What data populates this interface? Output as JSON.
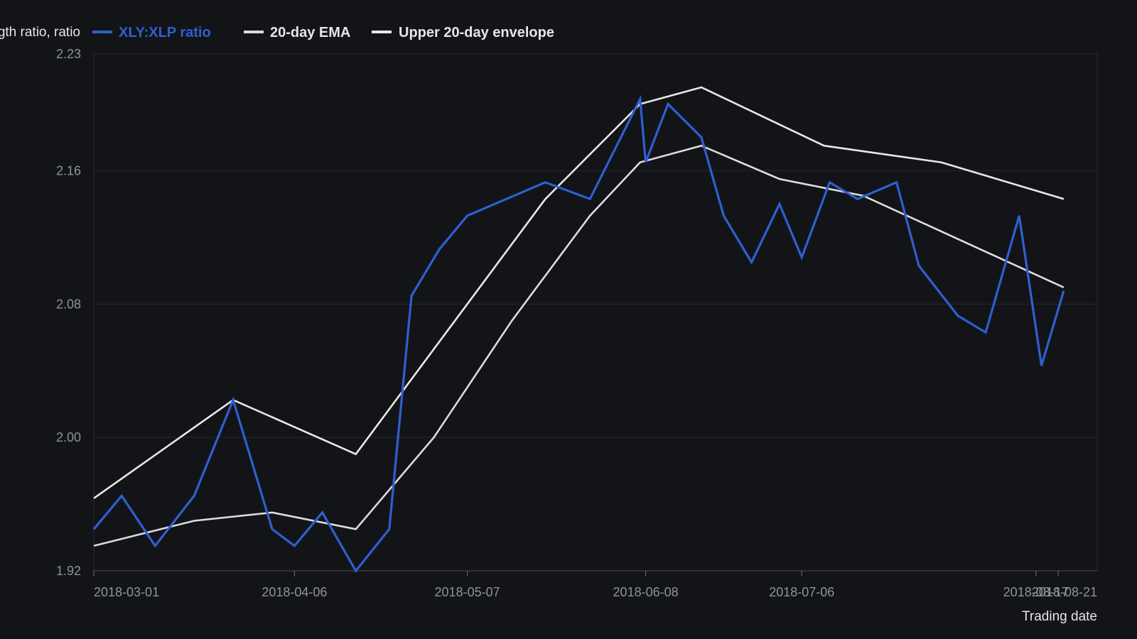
{
  "chart_data": {
    "type": "line",
    "xlabel": "Trading date",
    "ylabel_fragment": "gth ratio, ratio",
    "ylim": [
      1.92,
      2.23
    ],
    "xlim": [
      "2018-03-01",
      "2018-08-28"
    ],
    "y_ticks": [
      "2.23",
      "2.16",
      "2.08",
      "2.00",
      "1.92"
    ],
    "x_ticks": [
      "2018-03-01",
      "2018-04-06",
      "2018-05-07",
      "2018-06-08",
      "2018-07-06",
      "2018-08-17",
      "2018-08-21"
    ],
    "grid": true,
    "legend_position": "top-left",
    "series": [
      {
        "name": "XLY:XLP ratio",
        "color": "#2f5fd0",
        "points": [
          [
            "2018-03-01",
            1.945
          ],
          [
            "2018-03-06",
            1.965
          ],
          [
            "2018-03-12",
            1.935
          ],
          [
            "2018-03-19",
            1.965
          ],
          [
            "2018-03-26",
            2.0225
          ],
          [
            "2018-04-02",
            1.945
          ],
          [
            "2018-04-06",
            1.935
          ],
          [
            "2018-04-11",
            1.955
          ],
          [
            "2018-04-17",
            1.92
          ],
          [
            "2018-04-23",
            1.945
          ],
          [
            "2018-04-27",
            2.085
          ],
          [
            "2018-05-02",
            2.113
          ],
          [
            "2018-05-07",
            2.133
          ],
          [
            "2018-05-21",
            2.153
          ],
          [
            "2018-05-29",
            2.143
          ],
          [
            "2018-06-07",
            2.203
          ],
          [
            "2018-06-08",
            2.165
          ],
          [
            "2018-06-12",
            2.2
          ],
          [
            "2018-06-18",
            2.18
          ],
          [
            "2018-06-22",
            2.133
          ],
          [
            "2018-06-27",
            2.105
          ],
          [
            "2018-07-02",
            2.14
          ],
          [
            "2018-07-06",
            2.108
          ],
          [
            "2018-07-11",
            2.153
          ],
          [
            "2018-07-16",
            2.143
          ],
          [
            "2018-07-23",
            2.153
          ],
          [
            "2018-07-27",
            2.103
          ],
          [
            "2018-08-03",
            2.073
          ],
          [
            "2018-08-08",
            2.063
          ],
          [
            "2018-08-14",
            2.133
          ],
          [
            "2018-08-18",
            2.043
          ],
          [
            "2018-08-22",
            2.088
          ]
        ]
      },
      {
        "name": "20-day EMA",
        "color": "#dcdcdc",
        "points": [
          [
            "2018-03-01",
            1.935
          ],
          [
            "2018-03-19",
            1.95
          ],
          [
            "2018-04-02",
            1.955
          ],
          [
            "2018-04-17",
            1.945
          ],
          [
            "2018-05-01",
            2.0
          ],
          [
            "2018-05-15",
            2.07
          ],
          [
            "2018-05-29",
            2.133
          ],
          [
            "2018-06-07",
            2.165
          ],
          [
            "2018-06-18",
            2.175
          ],
          [
            "2018-07-02",
            2.155
          ],
          [
            "2018-07-17",
            2.145
          ],
          [
            "2018-08-22",
            2.09
          ]
        ]
      },
      {
        "name": "Upper 20-day envelope",
        "color": "#e8e8e8",
        "points": [
          [
            "2018-03-01",
            1.9635
          ],
          [
            "2018-03-26",
            2.0225
          ],
          [
            "2018-04-17",
            1.99
          ],
          [
            "2018-05-21",
            2.143
          ],
          [
            "2018-06-07",
            2.2
          ],
          [
            "2018-06-18",
            2.21
          ],
          [
            "2018-07-10",
            2.175
          ],
          [
            "2018-07-31",
            2.165
          ],
          [
            "2018-08-22",
            2.143
          ]
        ]
      }
    ]
  }
}
